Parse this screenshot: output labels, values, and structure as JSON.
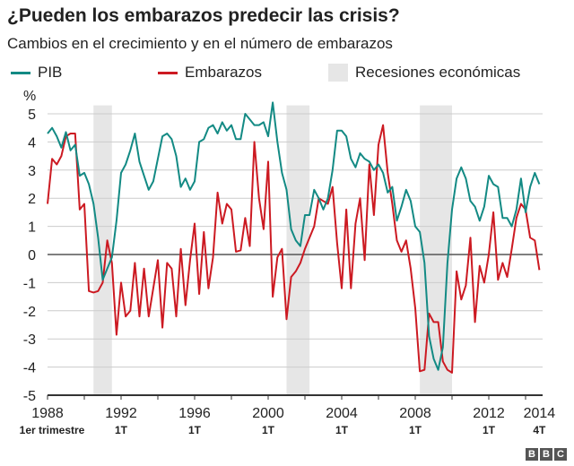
{
  "title": "¿Pueden los embarazos predecir las crisis?",
  "subtitle": "Cambios en el crecimiento y en el número de embarazos",
  "logo": "BBC",
  "colors": {
    "pib": "#138a84",
    "embarazos": "#cc1a22",
    "recession": "#e6e6e6"
  },
  "chart_data": {
    "type": "line",
    "title": "¿Pueden los embarazos predecir las crisis?",
    "subtitle": "Cambios en el crecimiento y en el número de embarazos",
    "ylabel": "%",
    "ylim": [
      -5,
      5
    ],
    "yticks": [
      "5",
      "4",
      "3",
      "2",
      "1",
      "0",
      "-1",
      "-2",
      "-3",
      "-4",
      "-5"
    ],
    "xlim": [
      "1988 1T",
      "2014 4T"
    ],
    "frequency": "quarterly",
    "xticks": [
      {
        "year": "1988",
        "sub": "1er trimestre"
      },
      {
        "year": "1992",
        "sub": "1T"
      },
      {
        "year": "1996",
        "sub": "1T"
      },
      {
        "year": "2000",
        "sub": "1T"
      },
      {
        "year": "2004",
        "sub": "1T"
      },
      {
        "year": "2008",
        "sub": "1T"
      },
      {
        "year": "2012",
        "sub": "1T"
      },
      {
        "year": "2014",
        "sub": "4T"
      }
    ],
    "grid": true,
    "legend": {
      "position": "top",
      "items": [
        "PIB",
        "Embarazos",
        "Recesiones económicas"
      ]
    },
    "recessions": [
      [
        "1990 3T",
        "1991 2T"
      ],
      [
        "2001 1T",
        "2002 1T"
      ],
      [
        "2008 2T",
        "2009 4T"
      ]
    ],
    "series": [
      {
        "name": "PIB",
        "values": [
          4.3,
          4.5,
          4.2,
          3.8,
          4.35,
          3.7,
          3.9,
          2.8,
          2.9,
          2.5,
          1.8,
          0.6,
          -0.9,
          -0.5,
          -0.1,
          1.2,
          2.9,
          3.2,
          3.7,
          4.3,
          3.3,
          2.8,
          2.3,
          2.6,
          3.4,
          4.2,
          4.3,
          4.1,
          3.5,
          2.4,
          2.7,
          2.3,
          2.6,
          4.0,
          4.1,
          4.5,
          4.6,
          4.3,
          4.7,
          4.4,
          4.6,
          4.1,
          4.1,
          5.0,
          4.8,
          4.6,
          4.6,
          4.7,
          4.2,
          5.4,
          4.0,
          2.9,
          2.3,
          0.9,
          0.5,
          0.3,
          1.4,
          1.4,
          2.3,
          2.0,
          1.6,
          2.0,
          3.0,
          4.4,
          4.4,
          4.2,
          3.4,
          3.1,
          3.6,
          3.4,
          3.3,
          3.0,
          3.2,
          2.9,
          2.2,
          2.4,
          1.2,
          1.7,
          2.3,
          1.9,
          1.0,
          0.8,
          -0.3,
          -2.9,
          -3.7,
          -4.1,
          -3.3,
          -0.3,
          1.6,
          2.7,
          3.1,
          2.7,
          1.9,
          1.7,
          1.2,
          1.7,
          2.8,
          2.5,
          2.4,
          1.3,
          1.3,
          1.0,
          1.6,
          2.7,
          1.5,
          2.4,
          2.9,
          2.5
        ]
      },
      {
        "name": "Embarazos",
        "values": [
          1.8,
          3.4,
          3.2,
          3.5,
          4.2,
          4.3,
          4.3,
          1.6,
          1.8,
          -1.3,
          -1.35,
          -1.3,
          -1.0,
          0.5,
          -0.3,
          -2.85,
          -1.0,
          -2.2,
          -2.0,
          -0.3,
          -2.2,
          -0.5,
          -2.2,
          -1.2,
          -0.2,
          -2.6,
          -0.3,
          -0.5,
          -2.2,
          0.2,
          -1.8,
          -0.2,
          1.1,
          -1.4,
          0.8,
          -1.2,
          -0.1,
          2.2,
          1.1,
          1.8,
          1.6,
          0.1,
          0.15,
          1.3,
          0.3,
          4.0,
          2.0,
          0.9,
          3.3,
          -1.5,
          -0.1,
          0.2,
          -2.3,
          -0.8,
          -0.6,
          -0.3,
          0.2,
          0.6,
          1.0,
          2.0,
          1.9,
          1.8,
          2.4,
          0.4,
          -1.2,
          1.6,
          -1.2,
          1.1,
          2.0,
          -0.2,
          3.2,
          1.4,
          3.9,
          4.6,
          2.9,
          1.8,
          0.5,
          0.1,
          0.5,
          -0.5,
          -1.9,
          -4.15,
          -4.1,
          -2.1,
          -2.4,
          -2.4,
          -3.8,
          -4.1,
          -4.2,
          -0.6,
          -1.6,
          -1.1,
          0.6,
          -2.4,
          -0.4,
          -1.0,
          0.0,
          1.5,
          -0.9,
          -0.3,
          -0.8,
          0.2,
          1.3,
          1.8,
          1.6,
          0.6,
          0.5,
          -0.55
        ]
      }
    ]
  }
}
